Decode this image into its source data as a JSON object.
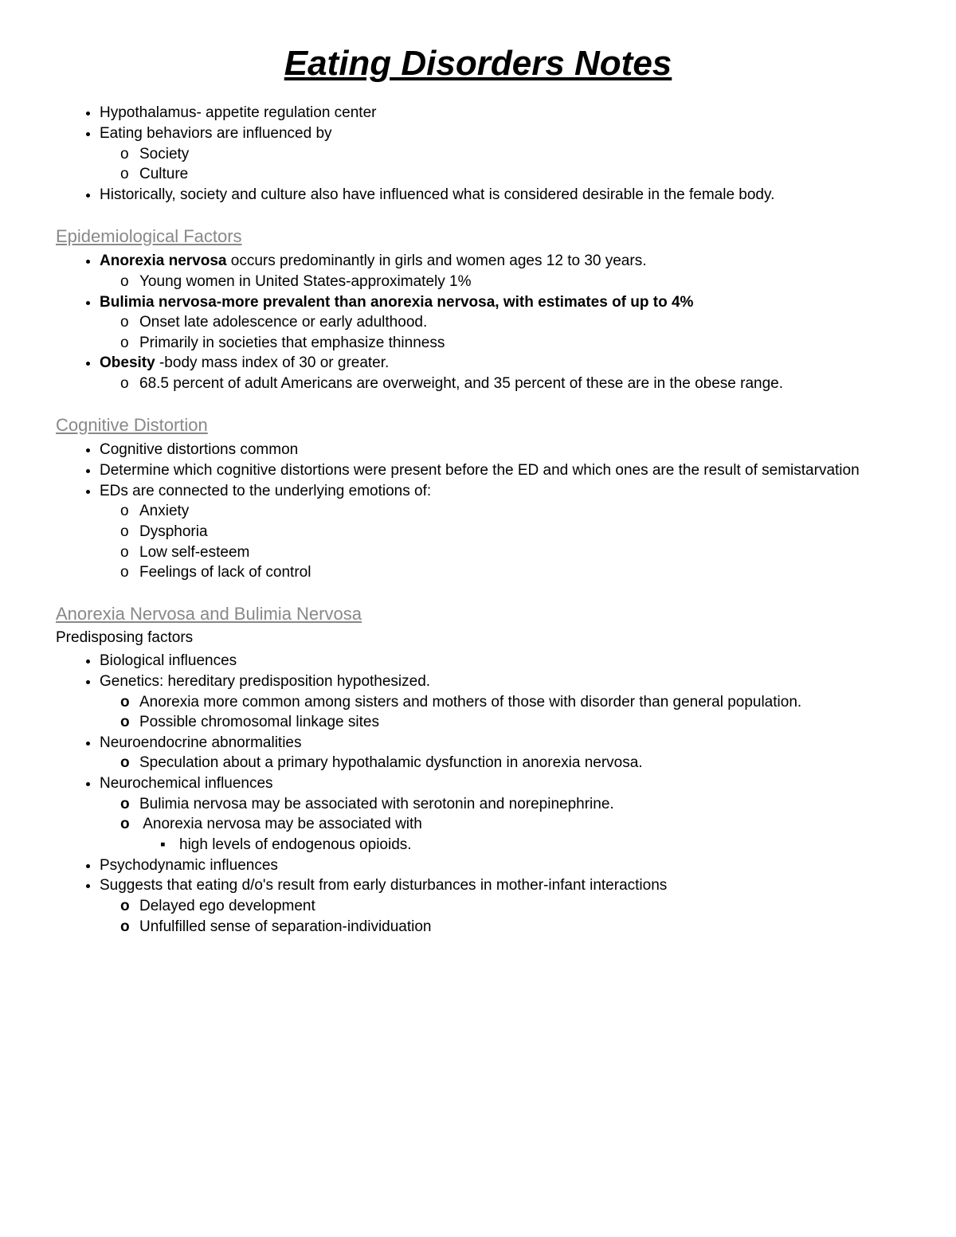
{
  "title": "Eating Disorders Notes",
  "intro": {
    "items": [
      "Hypothalamus- appetite regulation center",
      "Eating behaviors are influenced by",
      "Historically, society and culture also have influenced what is considered desirable in the female body."
    ],
    "sub1": [
      "Society",
      "Culture"
    ]
  },
  "section1": {
    "heading": "Epidemiological Factors ",
    "b1": {
      "bold": "Anorexia nervosa",
      "rest": " occurs predominantly in girls and women ages 12 to 30 years."
    },
    "b1sub": [
      "Young women in United States-approximately 1%"
    ],
    "b2": {
      "bold": "Bulimia nervosa-",
      "rest": "more prevalent than anorexia nervosa, with estimates of up to 4%"
    },
    "b2sub": [
      "Onset late adolescence or early adulthood.",
      "Primarily in societies that emphasize thinness"
    ],
    "b3": {
      "bold": "Obesity ",
      "rest": "-body mass index of 30 or greater."
    },
    "b3sub": [
      "68.5 percent of adult Americans are overweight, and 35 percent of these are in the obese range."
    ]
  },
  "section2": {
    "heading": "Cognitive Distortion",
    "items": [
      "Cognitive distortions common",
      "Determine which cognitive distortions were present before the ED and which ones are the result of semistarvation",
      "EDs are connected to the underlying emotions of:"
    ],
    "sub3": [
      "Anxiety",
      "Dysphoria",
      "Low self-esteem",
      "Feelings of lack of control"
    ]
  },
  "section3": {
    "heading": "Anorexia Nervosa and Bulimia Nervosa",
    "subheading": "Predisposing factors",
    "i1": "Biological influences",
    "i2": "Genetics: hereditary predisposition hypothesized.",
    "i2sub": [
      "Anorexia more common among sisters and mothers of those with disorder than general population.",
      "Possible chromosomal linkage sites"
    ],
    "i3": "Neuroendocrine abnormalities",
    "i3sub": [
      "Speculation about a primary hypothalamic dysfunction in anorexia nervosa."
    ],
    "i4": "Neurochemical influences",
    "i4sub": [
      "Bulimia nervosa may be associated with serotonin and norepinephrine.",
      "Anorexia nervosa may be associated with"
    ],
    "i4subsub": [
      "high levels of endogenous opioids."
    ],
    "i5": "Psychodynamic influences",
    "i6": "Suggests that eating d/o's result from early disturbances in mother-infant interactions",
    "i6sub": [
      "Delayed ego development",
      "Unfulfilled sense of separation-individuation"
    ]
  }
}
